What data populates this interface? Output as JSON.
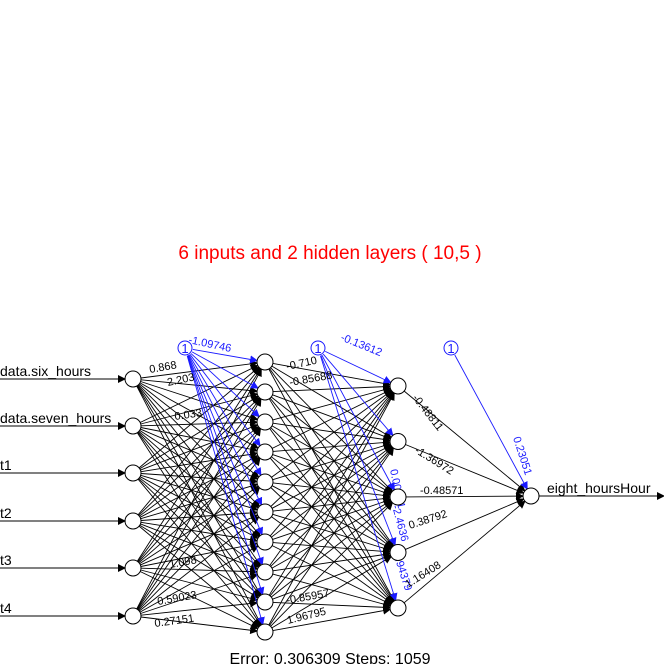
{
  "title": "6 inputs and 2 hidden layers ( 10,5 )",
  "footer": "Error: 0.306309   Steps: 1059",
  "bias_label": "1",
  "colors": {
    "title": "#ff0000",
    "bias": "#1a1aff",
    "weights": "#000000"
  },
  "inputs": [
    "data.six_hours",
    "data.seven_hours",
    "t1",
    "t2",
    "t3",
    "t4"
  ],
  "output": "eight_hoursHour",
  "hidden_layers": [
    10,
    5
  ],
  "visible_weight_labels": {
    "input_to_h1": [
      "0.868",
      "2.203",
      "0.033",
      "1.098",
      "0.59023",
      "0.27151"
    ],
    "h1_bias": "-1.09746",
    "h1_to_h2": [
      "-0.710",
      "-0.85688",
      "-0.85957",
      "1.96795"
    ],
    "h2_bias": "-0.13612",
    "h2_bias_to_h2": [
      "0.00001",
      "-2.4636",
      "-1.94379"
    ],
    "h2_to_output": [
      "-0.48811",
      "-1.36972",
      "-0.48571",
      "0.38792",
      "1.16408"
    ],
    "output_bias": "0.23051"
  }
}
